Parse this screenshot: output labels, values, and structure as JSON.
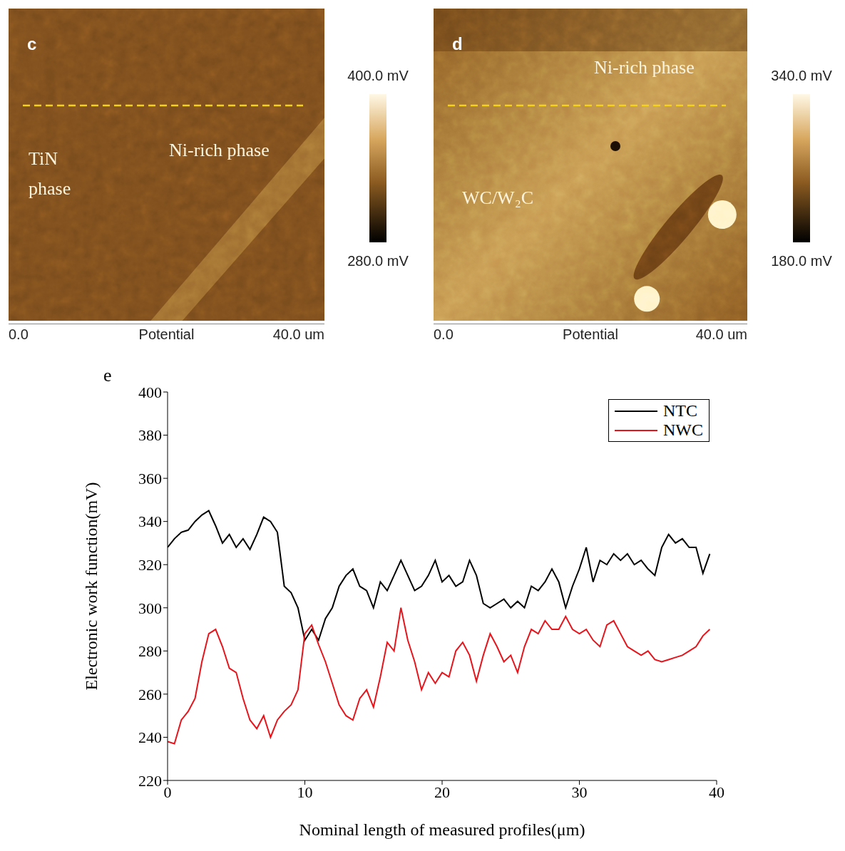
{
  "maps": [
    {
      "letter": "c",
      "labels": [
        "TiN phase",
        "Ni-rich phase"
      ],
      "xlabel": "Potential",
      "xlim": [
        0,
        40
      ],
      "xticks": [
        {
          "value": 0,
          "label": "0.0"
        },
        {
          "value": 40,
          "label": "40.0 um"
        }
      ],
      "colorbar_range": [
        280,
        400
      ],
      "colorbar_ticks": [
        {
          "value": 280,
          "label": "280.0 mV"
        },
        {
          "value": 400,
          "label": "400.0 mV"
        }
      ]
    },
    {
      "letter": "d",
      "labels": [
        "WC/W₂C",
        "Ni-rich phase"
      ],
      "xlabel": "Potential",
      "xlim": [
        0,
        40
      ],
      "xticks": [
        {
          "value": 0,
          "label": "0.0"
        },
        {
          "value": 40,
          "label": "40.0 um"
        }
      ],
      "colorbar_range": [
        180,
        340
      ],
      "colorbar_ticks": [
        {
          "value": 180,
          "label": "180.0 mV"
        },
        {
          "value": 340,
          "label": "340.0 mV"
        }
      ]
    }
  ],
  "chart_data": {
    "type": "line",
    "letter": "e",
    "xlabel": "Nominal length of measured profiles(μm)",
    "ylabel": "Electronic work function(mV)",
    "xlim": [
      0,
      40
    ],
    "xticks": [
      0,
      10,
      20,
      30,
      40
    ],
    "ylim": [
      220,
      400
    ],
    "yticks": [
      220,
      240,
      260,
      280,
      300,
      320,
      340,
      360,
      380,
      400
    ],
    "legend": "upper right",
    "grid": false,
    "x": [
      0,
      0.5,
      1,
      1.5,
      2,
      2.5,
      3,
      3.5,
      4,
      4.5,
      5,
      5.5,
      6,
      6.5,
      7,
      7.5,
      8,
      8.5,
      9,
      9.5,
      10,
      10.5,
      11,
      11.5,
      12,
      12.5,
      13,
      13.5,
      14,
      14.5,
      15,
      15.5,
      16,
      16.5,
      17,
      17.5,
      18,
      18.5,
      19,
      19.5,
      20,
      20.5,
      21,
      21.5,
      22,
      22.5,
      23,
      23.5,
      24,
      24.5,
      25,
      25.5,
      26,
      26.5,
      27,
      27.5,
      28,
      28.5,
      29,
      29.5,
      30,
      30.5,
      31,
      31.5,
      32,
      32.5,
      33,
      33.5,
      34,
      34.5,
      35,
      35.5,
      36,
      36.5,
      37,
      37.5,
      38,
      38.5,
      39,
      39.5
    ],
    "series": [
      {
        "name": "NTC",
        "color": "#000000",
        "values": [
          328,
          332,
          335,
          336,
          340,
          343,
          345,
          338,
          330,
          334,
          328,
          332,
          327,
          334,
          342,
          340,
          335,
          310,
          307,
          300,
          285,
          290,
          285,
          295,
          300,
          310,
          315,
          318,
          310,
          308,
          300,
          312,
          308,
          315,
          322,
          315,
          308,
          310,
          315,
          322,
          312,
          315,
          310,
          312,
          322,
          315,
          302,
          300,
          302,
          304,
          300,
          303,
          300,
          310,
          308,
          312,
          318,
          312,
          300,
          310,
          318,
          328,
          312,
          322,
          320,
          325,
          322,
          325,
          320,
          322,
          318,
          315,
          328,
          334,
          330,
          332,
          328,
          328,
          316,
          325
        ]
      },
      {
        "name": "NWC",
        "color": "#e8141c",
        "values": [
          238,
          237,
          248,
          252,
          258,
          275,
          288,
          290,
          282,
          272,
          270,
          258,
          248,
          244,
          250,
          240,
          248,
          252,
          255,
          262,
          288,
          292,
          283,
          275,
          265,
          255,
          250,
          248,
          258,
          262,
          254,
          268,
          284,
          280,
          300,
          285,
          275,
          262,
          270,
          265,
          270,
          268,
          280,
          284,
          278,
          266,
          278,
          288,
          282,
          275,
          278,
          270,
          282,
          290,
          288,
          294,
          290,
          290,
          296,
          290,
          288,
          290,
          285,
          282,
          292,
          294,
          288,
          282,
          280,
          278,
          280,
          276,
          275,
          276,
          277,
          278,
          280,
          282,
          287,
          290
        ]
      }
    ]
  }
}
